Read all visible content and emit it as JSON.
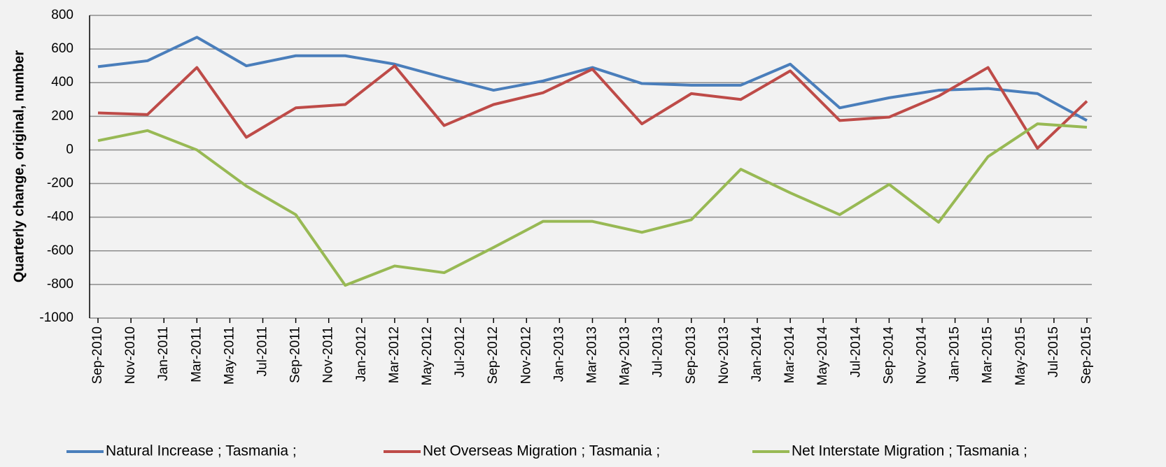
{
  "chart_data": {
    "type": "line",
    "y_label": "Quarterly change, original, number",
    "x": [
      "2010-09",
      "2010-12",
      "2011-03",
      "2011-06",
      "2011-09",
      "2011-12",
      "2012-03",
      "2012-06",
      "2012-09",
      "2012-12",
      "2013-03",
      "2013-06",
      "2013-09",
      "2013-12",
      "2014-03",
      "2014-06",
      "2014-09",
      "2014-12",
      "2015-03",
      "2015-06",
      "2015-09"
    ],
    "series": [
      {
        "name": "Natural Increase ; Tasmania ;",
        "color": "#4a7ebb",
        "values": [
          495,
          530,
          670,
          500,
          560,
          560,
          510,
          430,
          355,
          410,
          490,
          395,
          385,
          385,
          510,
          250,
          310,
          355,
          365,
          335,
          175
        ]
      },
      {
        "name": "Net Overseas Migration ; Tasmania ;",
        "color": "#be4b48",
        "values": [
          220,
          210,
          490,
          75,
          250,
          270,
          500,
          145,
          270,
          340,
          480,
          155,
          335,
          300,
          470,
          175,
          195,
          320,
          490,
          10,
          290
        ]
      },
      {
        "name": "Net Interstate Migration ; Tasmania ;",
        "color": "#98b954",
        "values": [
          55,
          115,
          0,
          -215,
          -385,
          -805,
          -690,
          -730,
          -580,
          -425,
          -425,
          -490,
          -415,
          -115,
          -255,
          -385,
          -205,
          -430,
          -40,
          155,
          135
        ]
      }
    ],
    "ylim": [
      -1000,
      800
    ],
    "yticks": [
      -1000,
      -800,
      -600,
      -400,
      -200,
      0,
      200,
      400,
      600,
      800
    ],
    "xticks": [
      {
        "value": "2010-09",
        "label": "Sep-2010"
      },
      {
        "value": "2010-11",
        "label": "Nov-2010"
      },
      {
        "value": "2011-01",
        "label": "Jan-2011"
      },
      {
        "value": "2011-03",
        "label": "Mar-2011"
      },
      {
        "value": "2011-05",
        "label": "May-2011"
      },
      {
        "value": "2011-07",
        "label": "Jul-2011"
      },
      {
        "value": "2011-09",
        "label": "Sep-2011"
      },
      {
        "value": "2011-11",
        "label": "Nov-2011"
      },
      {
        "value": "2012-01",
        "label": "Jan-2012"
      },
      {
        "value": "2012-03",
        "label": "Mar-2012"
      },
      {
        "value": "2012-05",
        "label": "May-2012"
      },
      {
        "value": "2012-07",
        "label": "Jul-2012"
      },
      {
        "value": "2012-09",
        "label": "Sep-2012"
      },
      {
        "value": "2012-11",
        "label": "Nov-2012"
      },
      {
        "value": "2013-01",
        "label": "Jan-2013"
      },
      {
        "value": "2013-03",
        "label": "Mar-2013"
      },
      {
        "value": "2013-05",
        "label": "May-2013"
      },
      {
        "value": "2013-07",
        "label": "Jul-2013"
      },
      {
        "value": "2013-09",
        "label": "Sep-2013"
      },
      {
        "value": "2013-11",
        "label": "Nov-2013"
      },
      {
        "value": "2014-01",
        "label": "Jan-2014"
      },
      {
        "value": "2014-03",
        "label": "Mar-2014"
      },
      {
        "value": "2014-05",
        "label": "May-2014"
      },
      {
        "value": "2014-07",
        "label": "Jul-2014"
      },
      {
        "value": "2014-09",
        "label": "Sep-2014"
      },
      {
        "value": "2014-11",
        "label": "Nov-2014"
      },
      {
        "value": "2015-01",
        "label": "Jan-2015"
      },
      {
        "value": "2015-03",
        "label": "Mar-2015"
      },
      {
        "value": "2015-05",
        "label": "May-2015"
      },
      {
        "value": "2015-07",
        "label": "Jul-2015"
      },
      {
        "value": "2015-09",
        "label": "Sep-2015"
      }
    ],
    "grid": true
  }
}
